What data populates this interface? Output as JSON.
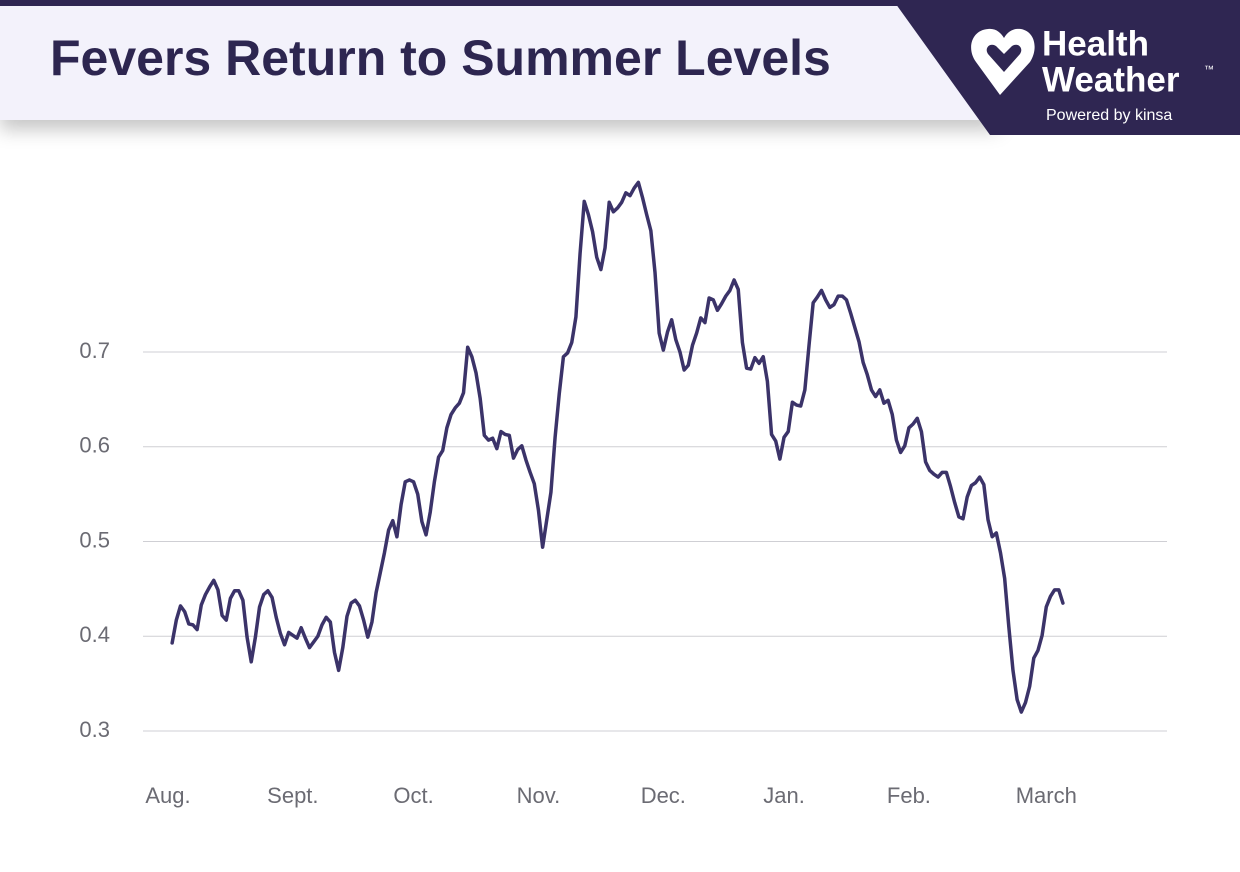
{
  "chart_data": {
    "type": "line",
    "title": "Fevers Return to Summer Levels",
    "color": "#3b3369",
    "x": [
      1,
      2,
      3,
      4,
      5,
      6,
      7,
      8,
      9,
      10,
      11,
      12,
      13,
      14,
      15,
      16,
      17,
      18,
      19,
      20,
      21,
      22,
      23,
      24,
      25,
      26,
      27,
      28,
      29,
      30,
      31,
      32,
      33,
      34,
      35,
      36,
      37,
      38,
      39,
      40,
      41,
      42,
      43,
      44,
      45,
      46,
      47,
      48,
      49,
      50,
      51,
      52,
      53,
      54,
      55,
      56,
      57,
      58,
      59,
      60,
      61,
      62,
      63,
      64,
      65,
      66,
      67,
      68,
      69,
      70,
      71,
      72,
      73,
      74,
      75,
      76,
      77,
      78,
      79,
      80,
      81,
      82,
      83,
      84,
      85,
      86,
      87,
      88,
      89,
      90,
      91,
      92,
      93,
      94,
      95,
      96,
      97,
      98,
      99,
      100,
      101,
      102,
      103,
      104,
      105,
      106,
      107,
      108,
      109,
      110,
      111,
      112,
      113,
      114,
      115,
      116,
      117,
      118,
      119,
      120,
      121,
      122,
      123,
      124,
      125,
      126,
      127,
      128,
      129,
      130,
      131,
      132,
      133,
      134,
      135,
      136,
      137,
      138,
      139,
      140,
      141,
      142,
      143,
      144,
      145,
      146,
      147,
      148,
      149,
      150,
      151,
      152,
      153,
      154,
      155,
      156,
      157,
      158,
      159,
      160,
      161,
      162,
      163,
      164,
      165,
      166,
      167,
      168,
      169,
      170,
      171,
      172,
      173,
      174,
      175,
      176,
      177,
      178,
      179,
      180,
      181,
      182,
      183,
      184,
      185,
      186,
      187,
      188,
      189,
      190,
      191,
      192,
      193,
      194,
      195,
      196,
      197,
      198,
      199,
      200,
      201,
      202,
      203,
      204,
      205,
      206,
      207,
      208,
      209,
      210,
      211,
      212,
      213,
      214,
      215
    ],
    "values": [
      0.393,
      0.417,
      0.432,
      0.426,
      0.413,
      0.412,
      0.407,
      0.433,
      0.444,
      0.452,
      0.459,
      0.449,
      0.422,
      0.417,
      0.44,
      0.448,
      0.448,
      0.438,
      0.399,
      0.373,
      0.399,
      0.431,
      0.444,
      0.448,
      0.441,
      0.42,
      0.403,
      0.391,
      0.404,
      0.401,
      0.398,
      0.409,
      0.398,
      0.388,
      0.394,
      0.4,
      0.412,
      0.42,
      0.415,
      0.383,
      0.364,
      0.388,
      0.421,
      0.435,
      0.438,
      0.432,
      0.417,
      0.399,
      0.415,
      0.446,
      0.467,
      0.488,
      0.512,
      0.522,
      0.505,
      0.539,
      0.563,
      0.565,
      0.563,
      0.55,
      0.521,
      0.507,
      0.531,
      0.563,
      0.589,
      0.596,
      0.62,
      0.634,
      0.641,
      0.646,
      0.657,
      0.705,
      0.695,
      0.678,
      0.651,
      0.612,
      0.607,
      0.609,
      0.598,
      0.616,
      0.613,
      0.612,
      0.588,
      0.597,
      0.601,
      0.586,
      0.573,
      0.561,
      0.533,
      0.494,
      0.523,
      0.552,
      0.61,
      0.656,
      0.695,
      0.699,
      0.71,
      0.737,
      0.804,
      0.859,
      0.845,
      0.827,
      0.8,
      0.787,
      0.81,
      0.858,
      0.848,
      0.852,
      0.858,
      0.868,
      0.865,
      0.873,
      0.879,
      0.863,
      0.845,
      0.828,
      0.784,
      0.72,
      0.702,
      0.721,
      0.734,
      0.713,
      0.7,
      0.681,
      0.686,
      0.707,
      0.72,
      0.736,
      0.731,
      0.757,
      0.755,
      0.744,
      0.751,
      0.759,
      0.765,
      0.776,
      0.766,
      0.71,
      0.683,
      0.682,
      0.694,
      0.688,
      0.695,
      0.669,
      0.613,
      0.606,
      0.587,
      0.61,
      0.616,
      0.647,
      0.644,
      0.643,
      0.66,
      0.707,
      0.752,
      0.758,
      0.765,
      0.755,
      0.747,
      0.75,
      0.759,
      0.759,
      0.755,
      0.741,
      0.726,
      0.711,
      0.689,
      0.676,
      0.66,
      0.653,
      0.66,
      0.646,
      0.649,
      0.634,
      0.607,
      0.594,
      0.601,
      0.62,
      0.624,
      0.63,
      0.616,
      0.584,
      0.575,
      0.571,
      0.568,
      0.573,
      0.573,
      0.558,
      0.541,
      0.526,
      0.524,
      0.547,
      0.559,
      0.562,
      0.568,
      0.56,
      0.523,
      0.505,
      0.509,
      0.488,
      0.461,
      0.41,
      0.364,
      0.333,
      0.32,
      0.33,
      0.347,
      0.377,
      0.385,
      0.401,
      0.431,
      0.442,
      0.449,
      0.449,
      0.435
    ],
    "xlim": [
      -6,
      240
    ],
    "xticks": [
      {
        "value": 0,
        "label": "Aug."
      },
      {
        "value": 30,
        "label": "Sept."
      },
      {
        "value": 59,
        "label": "Oct."
      },
      {
        "value": 89,
        "label": "Nov."
      },
      {
        "value": 119,
        "label": "Dec."
      },
      {
        "value": 148,
        "label": "Jan."
      },
      {
        "value": 178,
        "label": "Feb."
      },
      {
        "value": 211,
        "label": "March"
      }
    ],
    "ylim": [
      0.3,
      0.9
    ],
    "yticks": [
      0.3,
      0.4,
      0.5,
      0.6,
      0.7
    ],
    "grid": true
  },
  "brand": {
    "line1": "Health",
    "line2": "Weather",
    "trademark": "™",
    "tagline": "Powered by kinsa"
  }
}
